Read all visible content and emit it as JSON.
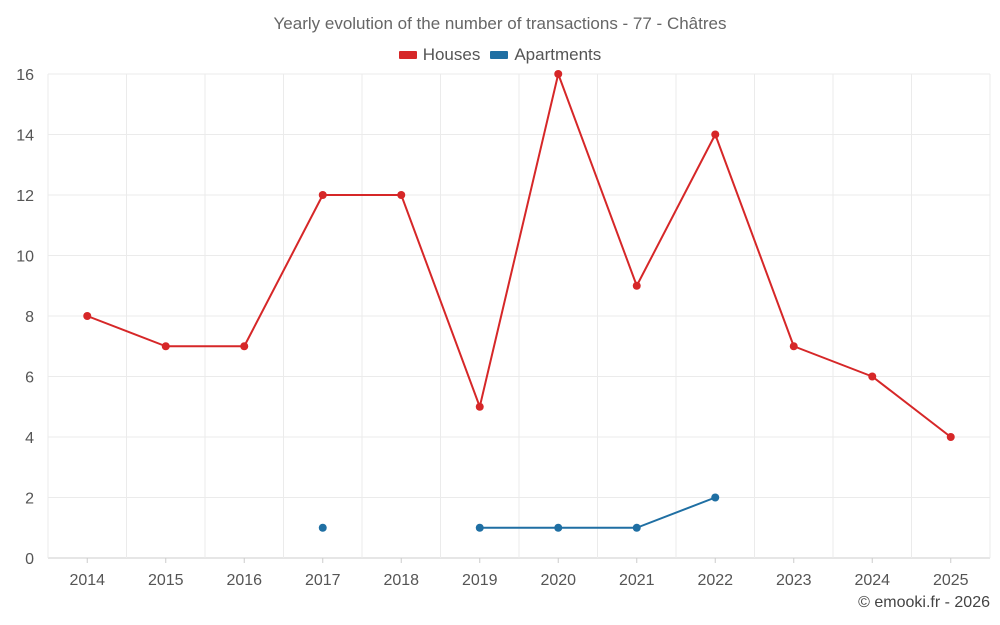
{
  "chart_data": {
    "type": "line",
    "title": "Yearly evolution of the number of transactions - 77 - Châtres",
    "xlabel": "",
    "ylabel": "",
    "categories": [
      "2014",
      "2015",
      "2016",
      "2017",
      "2018",
      "2019",
      "2020",
      "2021",
      "2022",
      "2023",
      "2024",
      "2025"
    ],
    "yticks": [
      "0",
      "2",
      "4",
      "6",
      "8",
      "10",
      "12",
      "14",
      "16"
    ],
    "ylim": [
      0,
      16
    ],
    "grid": true,
    "legend_position": "top-center",
    "series": [
      {
        "name": "Houses",
        "color": "#d62728",
        "values": [
          8,
          7,
          7,
          12,
          12,
          5,
          16,
          9,
          14,
          7,
          6,
          4
        ]
      },
      {
        "name": "Apartments",
        "color": "#1f6fa3",
        "values": [
          null,
          null,
          null,
          1,
          null,
          1,
          1,
          1,
          2,
          null,
          null,
          null
        ]
      }
    ]
  },
  "credit": "© emooki.fr - 2026"
}
